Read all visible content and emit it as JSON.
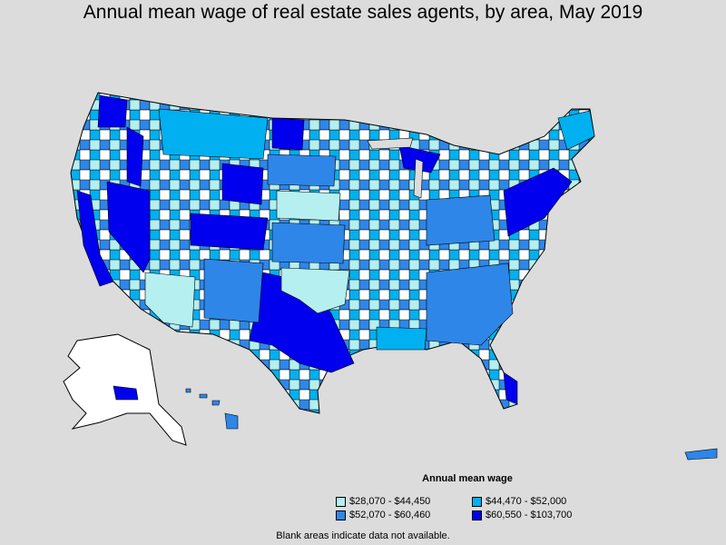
{
  "title": "Annual mean wage of real estate sales agents, by area, May 2019",
  "legend": {
    "title": "Annual mean wage",
    "items": [
      {
        "label": "$28,070 - $44,450",
        "color": "#b5efef"
      },
      {
        "label": "$44,470 - $52,000",
        "color": "#00b0f0"
      },
      {
        "label": "$52,070 - $60,460",
        "color": "#2e86e8"
      },
      {
        "label": "$60,550 - $103,700",
        "color": "#0000ee"
      }
    ]
  },
  "note": "Blank areas indicate data not available.",
  "colors": {
    "background": "#dcdcdc",
    "no_data": "#ffffff",
    "border": "#000000"
  }
}
